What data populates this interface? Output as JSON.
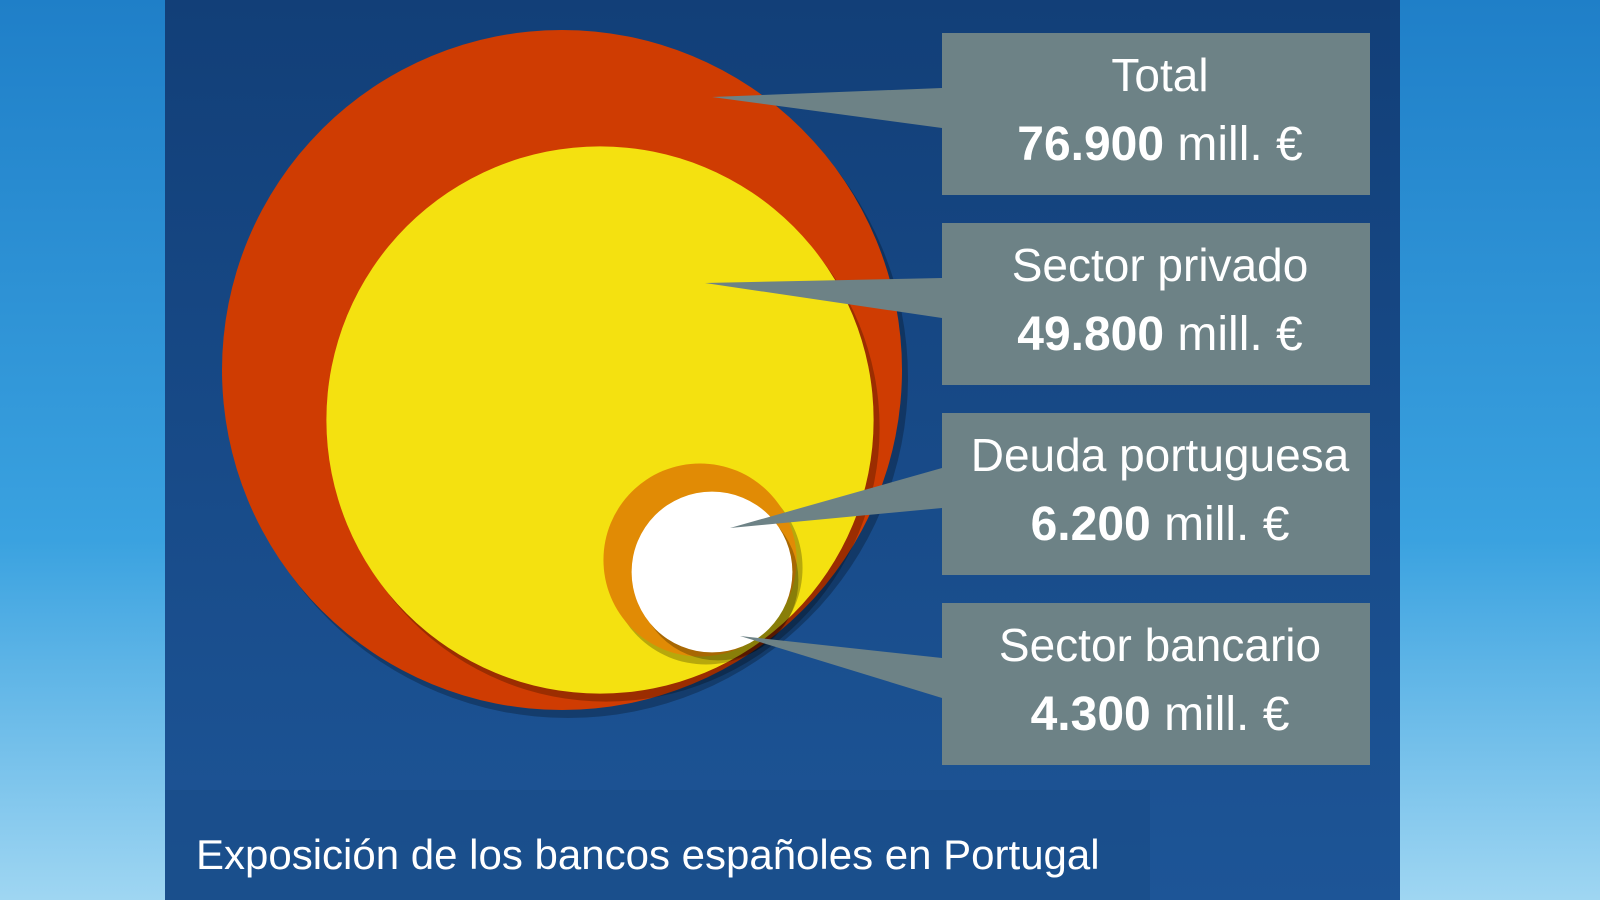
{
  "chart_data": {
    "type": "bubble",
    "title": "Exposición de los bancos españoles en Portugal",
    "unit": "mill. €",
    "categories": [
      "Total",
      "Sector privado",
      "Deuda portuguesa",
      "Sector bancario"
    ],
    "values": [
      76900,
      49800,
      6200,
      4300
    ],
    "value_labels": [
      "76.900",
      "49.800",
      "6.200",
      "4.300"
    ],
    "colors": [
      "#cf3c02",
      "#f4e110",
      "#e18b05",
      "#ffffff"
    ]
  }
}
